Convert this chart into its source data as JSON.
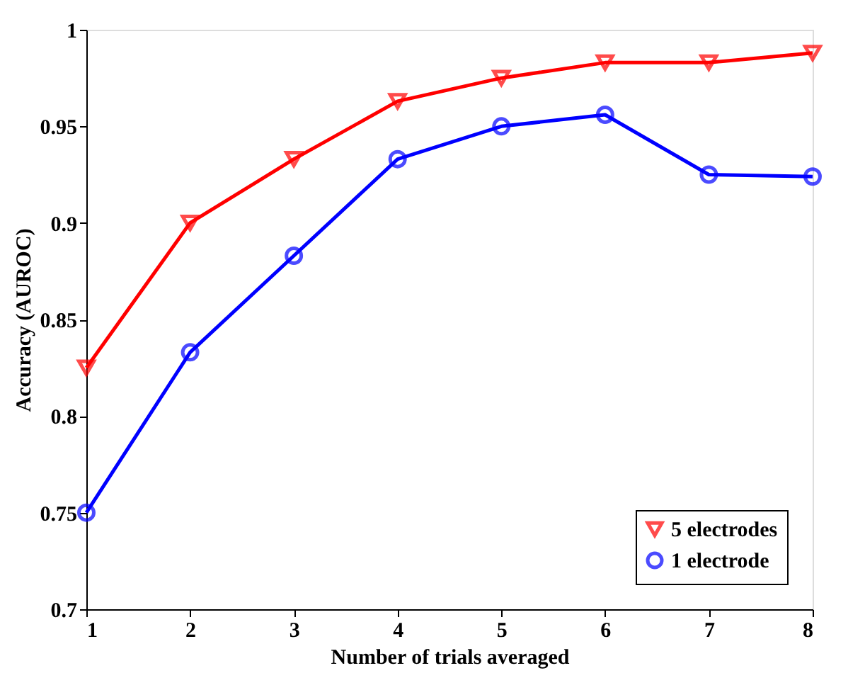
{
  "chart_data": {
    "type": "line",
    "xlabel": "Number of trials averaged",
    "ylabel": "Accuracy (AUROC)",
    "x": [
      1,
      2,
      3,
      4,
      5,
      6,
      7,
      8
    ],
    "series": [
      {
        "name": "5 electrodes",
        "color": "#ff0000",
        "marker": "triangle",
        "values": [
          0.825,
          0.9,
          0.933,
          0.963,
          0.975,
          0.983,
          0.983,
          0.988
        ]
      },
      {
        "name": "1 electrode",
        "color": "#0000ff",
        "marker": "circle",
        "values": [
          0.75,
          0.833,
          0.883,
          0.933,
          0.95,
          0.956,
          0.925,
          0.924
        ]
      }
    ],
    "xlim": [
      1,
      8
    ],
    "xticks": [
      1,
      2,
      3,
      4,
      5,
      6,
      7,
      8
    ],
    "ylim": [
      0.7,
      1
    ],
    "yticks": [
      0.7,
      0.75,
      0.8,
      0.85,
      0.9,
      0.95,
      1
    ],
    "grid": false,
    "legend": "bottom right",
    "line_style": "solid"
  }
}
